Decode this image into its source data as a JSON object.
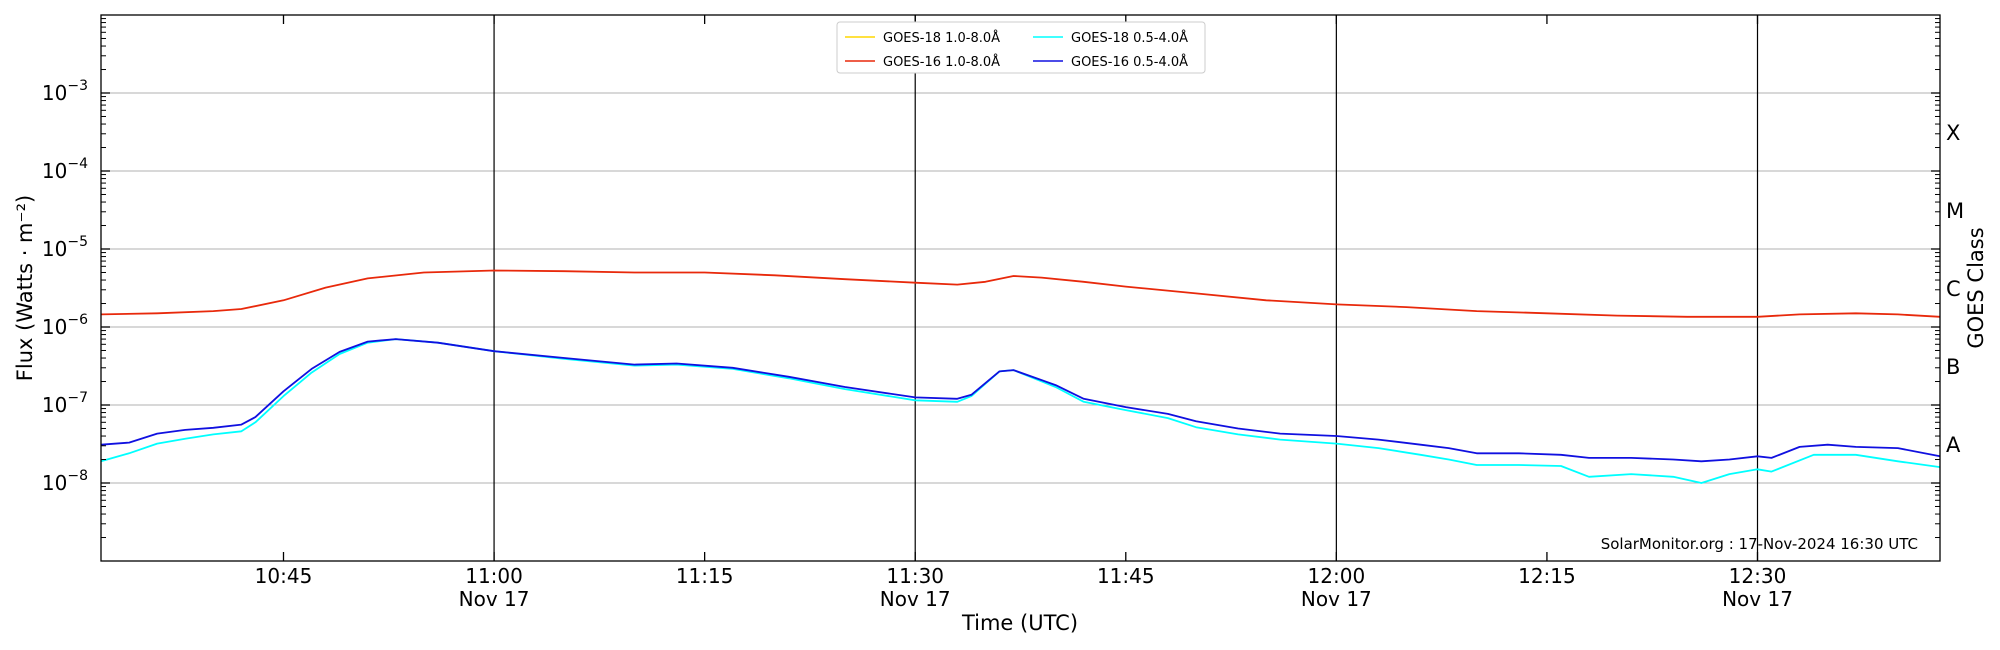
{
  "chart_data": {
    "type": "line",
    "xlabel": "Time (UTC)",
    "ylabel": "Flux (Watts · m⁻²)",
    "ylabel_right": "GOES Class",
    "y_scale": "log",
    "xlim": [
      "10:32",
      "12:43"
    ],
    "ylim": [
      1e-09,
      0.01
    ],
    "grid": "horizontal at decades",
    "legend_position": "top-center",
    "watermark": "SolarMonitor.org : 17-Nov-2024 16:30 UTC",
    "x_ticks": [
      {
        "time": "10:45",
        "label": "10:45",
        "sublabel": ""
      },
      {
        "time": "11:00",
        "label": "11:00",
        "sublabel": "Nov 17"
      },
      {
        "time": "11:15",
        "label": "11:15",
        "sublabel": ""
      },
      {
        "time": "11:30",
        "label": "11:30",
        "sublabel": "Nov 17"
      },
      {
        "time": "11:45",
        "label": "11:45",
        "sublabel": ""
      },
      {
        "time": "12:00",
        "label": "12:00",
        "sublabel": "Nov 17"
      },
      {
        "time": "12:15",
        "label": "12:15",
        "sublabel": ""
      },
      {
        "time": "12:30",
        "label": "12:30",
        "sublabel": "Nov 17"
      }
    ],
    "vertical_lines": [
      "11:00",
      "11:30",
      "12:00",
      "12:30"
    ],
    "y_ticks": [
      {
        "exp": -8,
        "base": "10",
        "sup": "−8"
      },
      {
        "exp": -7,
        "base": "10",
        "sup": "−7"
      },
      {
        "exp": -6,
        "base": "10",
        "sup": "−6"
      },
      {
        "exp": -5,
        "base": "10",
        "sup": "−5"
      },
      {
        "exp": -4,
        "base": "10",
        "sup": "−4"
      },
      {
        "exp": -3,
        "base": "10",
        "sup": "−3"
      }
    ],
    "goes_classes": [
      {
        "label": "A",
        "exp": -7.5
      },
      {
        "label": "B",
        "exp": -6.5
      },
      {
        "label": "C",
        "exp": -5.5
      },
      {
        "label": "M",
        "exp": -4.5
      },
      {
        "label": "X",
        "exp": -3.5
      }
    ],
    "series": [
      {
        "name": "GOES-18 1.0-8.0Å",
        "color": "#ffd700",
        "points": []
      },
      {
        "name": "GOES-16 1.0-8.0Å",
        "color": "#e8290b",
        "points": [
          [
            "10:32",
            1.45e-06
          ],
          [
            "10:36",
            1.5e-06
          ],
          [
            "10:40",
            1.6e-06
          ],
          [
            "10:42",
            1.7e-06
          ],
          [
            "10:45",
            2.2e-06
          ],
          [
            "10:48",
            3.2e-06
          ],
          [
            "10:51",
            4.2e-06
          ],
          [
            "10:55",
            5e-06
          ],
          [
            "11:00",
            5.3e-06
          ],
          [
            "11:05",
            5.2e-06
          ],
          [
            "11:10",
            5e-06
          ],
          [
            "11:15",
            5e-06
          ],
          [
            "11:20",
            4.6e-06
          ],
          [
            "11:25",
            4.1e-06
          ],
          [
            "11:30",
            3.7e-06
          ],
          [
            "11:33",
            3.5e-06
          ],
          [
            "11:35",
            3.8e-06
          ],
          [
            "11:37",
            4.5e-06
          ],
          [
            "11:39",
            4.3e-06
          ],
          [
            "11:42",
            3.8e-06
          ],
          [
            "11:45",
            3.3e-06
          ],
          [
            "11:50",
            2.7e-06
          ],
          [
            "11:55",
            2.2e-06
          ],
          [
            "12:00",
            1.95e-06
          ],
          [
            "12:05",
            1.8e-06
          ],
          [
            "12:10",
            1.6e-06
          ],
          [
            "12:15",
            1.5e-06
          ],
          [
            "12:20",
            1.4e-06
          ],
          [
            "12:25",
            1.35e-06
          ],
          [
            "12:30",
            1.35e-06
          ],
          [
            "12:33",
            1.45e-06
          ],
          [
            "12:37",
            1.5e-06
          ],
          [
            "12:40",
            1.45e-06
          ],
          [
            "12:43",
            1.35e-06
          ]
        ]
      },
      {
        "name": "GOES-18 0.5-4.0Å",
        "color": "#00ffff",
        "points": [
          [
            "10:32",
            1.9e-08
          ],
          [
            "10:34",
            2.4e-08
          ],
          [
            "10:36",
            3.2e-08
          ],
          [
            "10:38",
            3.7e-08
          ],
          [
            "10:40",
            4.2e-08
          ],
          [
            "10:42",
            4.6e-08
          ],
          [
            "10:43",
            6e-08
          ],
          [
            "10:45",
            1.3e-07
          ],
          [
            "10:47",
            2.6e-07
          ],
          [
            "10:49",
            4.5e-07
          ],
          [
            "10:51",
            6.3e-07
          ],
          [
            "10:53",
            7e-07
          ],
          [
            "10:56",
            6.3e-07
          ],
          [
            "11:00",
            4.9e-07
          ],
          [
            "11:05",
            3.9e-07
          ],
          [
            "11:10",
            3.2e-07
          ],
          [
            "11:13",
            3.3e-07
          ],
          [
            "11:17",
            2.9e-07
          ],
          [
            "11:21",
            2.2e-07
          ],
          [
            "11:25",
            1.6e-07
          ],
          [
            "11:30",
            1.15e-07
          ],
          [
            "11:33",
            1.1e-07
          ],
          [
            "11:34",
            1.3e-07
          ],
          [
            "11:36",
            2.7e-07
          ],
          [
            "11:37",
            2.8e-07
          ],
          [
            "11:40",
            1.7e-07
          ],
          [
            "11:42",
            1.1e-07
          ],
          [
            "11:45",
            8.6e-08
          ],
          [
            "11:48",
            6.8e-08
          ],
          [
            "11:50",
            5.2e-08
          ],
          [
            "11:53",
            4.2e-08
          ],
          [
            "11:56",
            3.6e-08
          ],
          [
            "12:00",
            3.2e-08
          ],
          [
            "12:03",
            2.8e-08
          ],
          [
            "12:06",
            2.3e-08
          ],
          [
            "12:08",
            2e-08
          ],
          [
            "12:10",
            1.7e-08
          ],
          [
            "12:13",
            1.7e-08
          ],
          [
            "12:16",
            1.65e-08
          ],
          [
            "12:18",
            1.2e-08
          ],
          [
            "12:21",
            1.3e-08
          ],
          [
            "12:24",
            1.2e-08
          ],
          [
            "12:26",
            1e-08
          ],
          [
            "12:28",
            1.3e-08
          ],
          [
            "12:30",
            1.5e-08
          ],
          [
            "12:31",
            1.4e-08
          ],
          [
            "12:34",
            2.3e-08
          ],
          [
            "12:37",
            2.3e-08
          ],
          [
            "12:40",
            1.9e-08
          ],
          [
            "12:43",
            1.6e-08
          ]
        ]
      },
      {
        "name": "GOES-16 0.5-4.0Å",
        "color": "#1010e0",
        "points": [
          [
            "10:32",
            3.1e-08
          ],
          [
            "10:34",
            3.3e-08
          ],
          [
            "10:36",
            4.3e-08
          ],
          [
            "10:38",
            4.8e-08
          ],
          [
            "10:40",
            5.1e-08
          ],
          [
            "10:42",
            5.6e-08
          ],
          [
            "10:43",
            7e-08
          ],
          [
            "10:45",
            1.5e-07
          ],
          [
            "10:47",
            2.9e-07
          ],
          [
            "10:49",
            4.8e-07
          ],
          [
            "10:51",
            6.5e-07
          ],
          [
            "10:53",
            7e-07
          ],
          [
            "10:56",
            6.3e-07
          ],
          [
            "11:00",
            4.9e-07
          ],
          [
            "11:05",
            4e-07
          ],
          [
            "11:10",
            3.3e-07
          ],
          [
            "11:13",
            3.4e-07
          ],
          [
            "11:17",
            3e-07
          ],
          [
            "11:21",
            2.3e-07
          ],
          [
            "11:25",
            1.7e-07
          ],
          [
            "11:30",
            1.25e-07
          ],
          [
            "11:33",
            1.2e-07
          ],
          [
            "11:34",
            1.35e-07
          ],
          [
            "11:36",
            2.7e-07
          ],
          [
            "11:37",
            2.8e-07
          ],
          [
            "11:40",
            1.8e-07
          ],
          [
            "11:42",
            1.2e-07
          ],
          [
            "11:45",
            9.4e-08
          ],
          [
            "11:48",
            7.7e-08
          ],
          [
            "11:50",
            6.2e-08
          ],
          [
            "11:53",
            5e-08
          ],
          [
            "11:56",
            4.3e-08
          ],
          [
            "12:00",
            4e-08
          ],
          [
            "12:03",
            3.6e-08
          ],
          [
            "12:06",
            3.1e-08
          ],
          [
            "12:08",
            2.8e-08
          ],
          [
            "12:10",
            2.4e-08
          ],
          [
            "12:13",
            2.4e-08
          ],
          [
            "12:16",
            2.3e-08
          ],
          [
            "12:18",
            2.1e-08
          ],
          [
            "12:21",
            2.1e-08
          ],
          [
            "12:24",
            2e-08
          ],
          [
            "12:26",
            1.9e-08
          ],
          [
            "12:28",
            2e-08
          ],
          [
            "12:30",
            2.2e-08
          ],
          [
            "12:31",
            2.1e-08
          ],
          [
            "12:33",
            2.9e-08
          ],
          [
            "12:35",
            3.1e-08
          ],
          [
            "12:37",
            2.9e-08
          ],
          [
            "12:40",
            2.8e-08
          ],
          [
            "12:43",
            2.2e-08
          ]
        ]
      }
    ]
  }
}
